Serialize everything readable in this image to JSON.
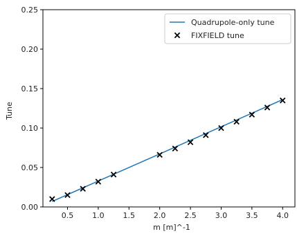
{
  "chart_data": {
    "type": "line",
    "xlabel": "m [m]^-1",
    "ylabel": "Tune",
    "xlim": [
      0.1,
      4.2
    ],
    "ylim": [
      0.0,
      0.25
    ],
    "xticks": [
      "0.5",
      "1.0",
      "1.5",
      "2.0",
      "2.5",
      "3.0",
      "3.5",
      "4.0"
    ],
    "yticks": [
      "0.00",
      "0.05",
      "0.10",
      "0.15",
      "0.20",
      "0.25"
    ],
    "grid": false,
    "legend_position": "top-right",
    "series": [
      {
        "name": "Quadrupole-only tune",
        "kind": "line",
        "color": "#1f77b4",
        "x": [
          0.25,
          4.0
        ],
        "y": [
          0.007,
          0.136
        ]
      },
      {
        "name": "FIXFIELD tune",
        "kind": "scatter",
        "marker": "x",
        "color": "#000000",
        "x": [
          0.25,
          0.5,
          0.75,
          1.0,
          1.25,
          2.0,
          2.25,
          2.5,
          2.75,
          3.0,
          3.25,
          3.5,
          3.75,
          4.0
        ],
        "y": [
          0.01,
          0.015,
          0.023,
          0.032,
          0.041,
          0.066,
          0.074,
          0.082,
          0.091,
          0.1,
          0.108,
          0.117,
          0.126,
          0.135
        ]
      }
    ]
  }
}
